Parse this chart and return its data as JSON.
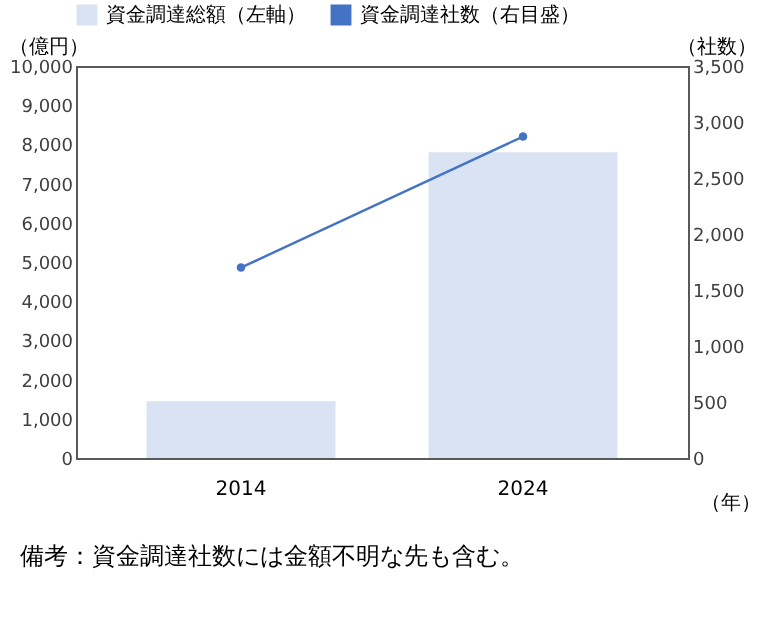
{
  "chart_data": {
    "type": "bar",
    "categories": [
      "2014",
      "2024"
    ],
    "series": [
      {
        "name": "資金調達総額（左軸）",
        "color": "#dae3f3",
        "values": [
          1450,
          7800
        ]
      },
      {
        "name": "資金調達社数（右目盛）",
        "type": "line",
        "axis": "y2",
        "color": "#4472c4",
        "values": [
          1700,
          2870
        ]
      }
    ],
    "ylabel": "（億円）",
    "y2label": "（社数）",
    "xlabel": "（年）",
    "ylim": [
      0,
      10000
    ],
    "yticks": [
      0,
      {
        "value": 1000,
        "label": "1,000"
      },
      {
        "value": 2000,
        "label": "2,000"
      },
      {
        "value": 3000,
        "label": "3,000"
      },
      {
        "value": 4000,
        "label": "4,000"
      },
      {
        "value": 5000,
        "label": "5,000"
      },
      {
        "value": 6000,
        "label": "6,000"
      },
      {
        "value": 7000,
        "label": "7,000"
      },
      {
        "value": 8000,
        "label": "8,000"
      },
      {
        "value": 9000,
        "label": "9,000"
      },
      {
        "value": 10000,
        "label": "10,000"
      }
    ],
    "y2lim": [
      0,
      3500
    ],
    "y2ticks": [
      0,
      500,
      {
        "value": 1000,
        "label": "1,000"
      },
      {
        "value": 1500,
        "label": "1,500"
      },
      {
        "value": 2000,
        "label": "2,000"
      },
      {
        "value": 2500,
        "label": "2,500"
      },
      {
        "value": 3000,
        "label": "3,000"
      },
      {
        "value": 3500,
        "label": "3,500"
      }
    ],
    "legend": "top",
    "grid": false,
    "marker": "circle",
    "annotations": [
      "備考：資金調達社数には金額不明な先も含む。"
    ]
  }
}
